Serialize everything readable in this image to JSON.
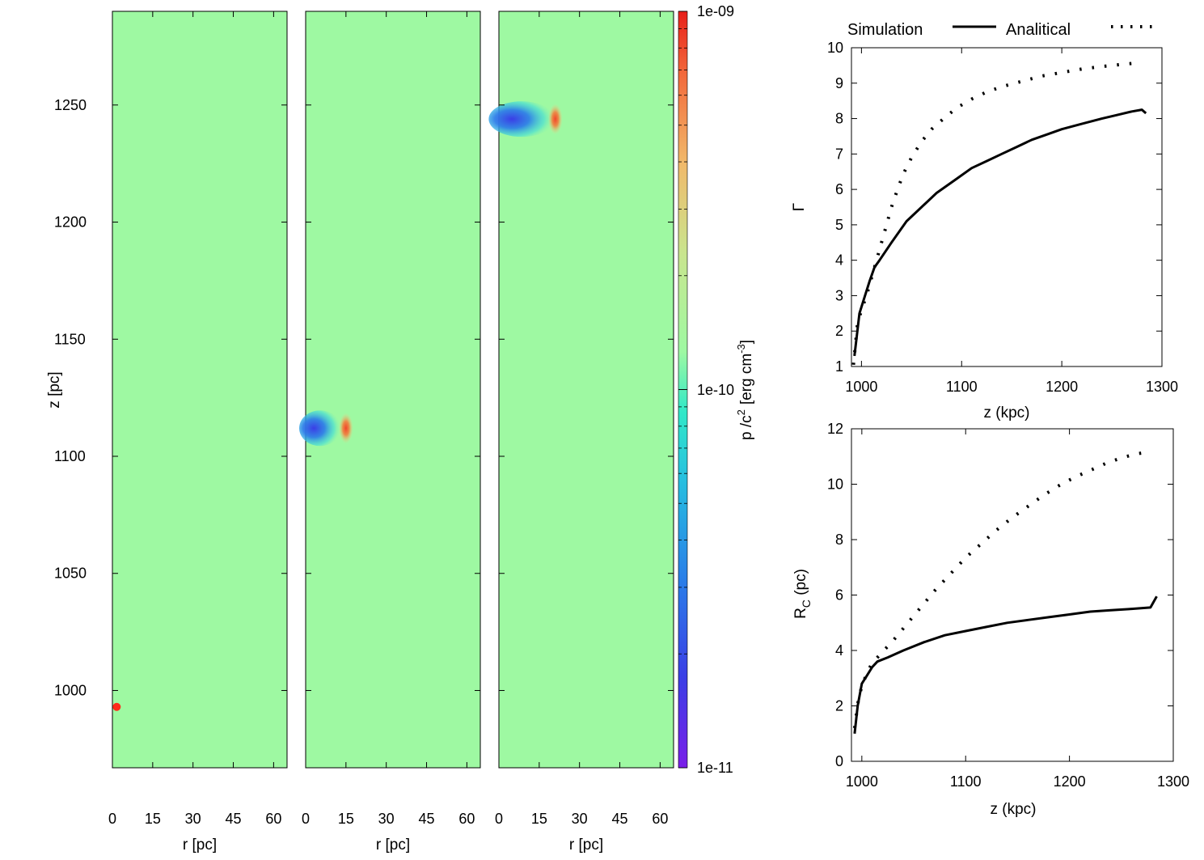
{
  "colors": {
    "background_field": "#9ef9a2",
    "frame": "#000000",
    "colormap": [
      "#7a1fe8",
      "#2f5fe6",
      "#27a8e6",
      "#2ae6d2",
      "#9ef9a2",
      "#cfe08a",
      "#f4a860",
      "#f23d25",
      "#e8201a"
    ]
  },
  "chart_data": [
    {
      "type": "heatmap",
      "panel": 1,
      "xlabel": "r [pc]",
      "ylabel": "z [pc]",
      "x_ticks": [
        "0",
        "15",
        "30",
        "45",
        "60"
      ],
      "y_ticks": [
        "1250",
        "1200",
        "1150",
        "1100",
        "1050",
        "1000"
      ],
      "xlim": [
        0,
        65
      ],
      "ylim": [
        967,
        1290
      ],
      "features": [
        {
          "kind": "blob",
          "r": 1,
          "z": 993,
          "color": "#ff2a1a"
        }
      ]
    },
    {
      "type": "heatmap",
      "panel": 2,
      "xlabel": "r [pc]",
      "x_ticks": [
        "0",
        "15",
        "30",
        "45",
        "60"
      ],
      "xlim": [
        0,
        65
      ],
      "ylim": [
        967,
        1290
      ],
      "features": [
        {
          "kind": "low_pressure_core",
          "r_start": 0,
          "r_end": 12,
          "z": 1112
        },
        {
          "kind": "high_pressure_shell",
          "r": 15,
          "z": 1112
        }
      ]
    },
    {
      "type": "heatmap",
      "panel": 3,
      "xlabel": "r [pc]",
      "x_ticks": [
        "0",
        "15",
        "30",
        "45",
        "60"
      ],
      "xlim": [
        0,
        65
      ],
      "ylim": [
        967,
        1290
      ],
      "features": [
        {
          "kind": "low_pressure_core",
          "r_start": 0,
          "r_end": 19,
          "z": 1244
        },
        {
          "kind": "high_pressure_shell",
          "r": 21,
          "z": 1244
        }
      ]
    },
    {
      "type": "colorbar",
      "label_main": "p /c",
      "label_sup": "2",
      "label_unit": "[erg cm",
      "label_unit_sup": "-3",
      "label_close": "]",
      "tick_labels": [
        "1e-09",
        "1e-10",
        "1e-11"
      ],
      "log_scale": true,
      "range": [
        1e-11,
        1e-09
      ]
    },
    {
      "type": "line",
      "panel": "top-right",
      "xlabel": "z (kpc)",
      "ylabel": "Γ",
      "xlim": [
        990,
        1300
      ],
      "ylim": [
        1,
        10
      ],
      "x_ticks": [
        1000,
        1100,
        1200,
        1300
      ],
      "y_ticks": [
        1,
        2,
        3,
        4,
        5,
        6,
        7,
        8,
        9,
        10
      ],
      "legend": {
        "position": "top",
        "entries": [
          "Simulation",
          "Analitical"
        ]
      },
      "series": [
        {
          "name": "Simulation",
          "style": "solid",
          "x": [
            993,
            998,
            1003,
            1008,
            1013,
            1018,
            1030,
            1045,
            1060,
            1075,
            1095,
            1110,
            1125,
            1140,
            1155,
            1170,
            1185,
            1200,
            1220,
            1240,
            1255,
            1270,
            1280,
            1284
          ],
          "y": [
            1.3,
            2.5,
            2.95,
            3.4,
            3.8,
            4.0,
            4.5,
            5.1,
            5.5,
            5.9,
            6.3,
            6.6,
            6.8,
            7.0,
            7.2,
            7.4,
            7.55,
            7.7,
            7.85,
            8.0,
            8.1,
            8.2,
            8.25,
            8.15
          ]
        },
        {
          "name": "Analitical",
          "style": "dotted",
          "x": [
            992,
            996,
            1000,
            1005,
            1010,
            1015,
            1020,
            1025,
            1030,
            1036,
            1042,
            1050,
            1060,
            1070,
            1082,
            1095,
            1110,
            1125,
            1140,
            1160,
            1180,
            1200,
            1220,
            1240,
            1260,
            1275
          ],
          "y": [
            1.05,
            2.2,
            2.6,
            3.0,
            3.5,
            4.0,
            4.5,
            5.0,
            5.5,
            6.0,
            6.45,
            6.9,
            7.35,
            7.7,
            8.0,
            8.3,
            8.55,
            8.75,
            8.9,
            9.05,
            9.2,
            9.3,
            9.4,
            9.47,
            9.53,
            9.57
          ]
        }
      ]
    },
    {
      "type": "line",
      "panel": "bottom-right",
      "xlabel": "z (kpc)",
      "ylabel_main": "R",
      "ylabel_sub": "C",
      "ylabel_unit": " (pc)",
      "xlim": [
        990,
        1300
      ],
      "ylim": [
        0,
        12
      ],
      "x_ticks": [
        1000,
        1100,
        1200,
        1300
      ],
      "y_ticks": [
        0,
        2,
        4,
        6,
        8,
        10,
        12
      ],
      "series": [
        {
          "name": "Simulation",
          "style": "solid",
          "x": [
            993,
            996,
            1000,
            1005,
            1010,
            1015,
            1025,
            1040,
            1060,
            1080,
            1100,
            1120,
            1140,
            1160,
            1180,
            1200,
            1220,
            1240,
            1260,
            1278,
            1284
          ],
          "y": [
            1.0,
            2.0,
            2.8,
            3.1,
            3.4,
            3.6,
            3.75,
            4.0,
            4.3,
            4.55,
            4.7,
            4.85,
            5.0,
            5.1,
            5.2,
            5.3,
            5.4,
            5.45,
            5.5,
            5.55,
            5.95
          ]
        },
        {
          "name": "Analitical",
          "style": "dotted",
          "x": [
            993,
            997,
            1000,
            1005,
            1010,
            1015,
            1020,
            1030,
            1040,
            1050,
            1060,
            1070,
            1080,
            1090,
            1100,
            1115,
            1130,
            1145,
            1160,
            1175,
            1190,
            1205,
            1220,
            1235,
            1250,
            1265,
            1275
          ],
          "y": [
            1.2,
            2.3,
            2.7,
            3.2,
            3.55,
            3.75,
            3.95,
            4.35,
            4.8,
            5.25,
            5.7,
            6.15,
            6.55,
            6.95,
            7.35,
            7.85,
            8.35,
            8.8,
            9.2,
            9.6,
            9.95,
            10.25,
            10.5,
            10.75,
            10.95,
            11.1,
            11.15
          ]
        }
      ]
    }
  ]
}
